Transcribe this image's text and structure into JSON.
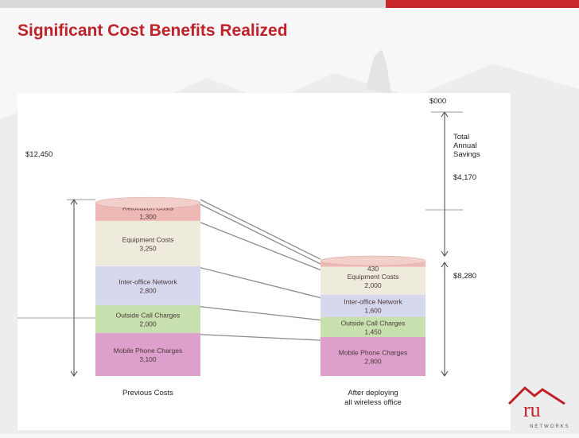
{
  "slide": {
    "title": "Significant Cost Benefits Realized",
    "accent_color": "#c0222a"
  },
  "logo": {
    "text_large": "ru",
    "text_small": "NETWORKS"
  },
  "chart_data": {
    "type": "bar",
    "stacked": true,
    "categories": [
      "Previous Costs",
      "After deploying all wireless office"
    ],
    "series": [
      {
        "name": "Mobile Phone Charges",
        "values": [
          3100,
          2800
        ],
        "labels": [
          "3,100",
          "2,800"
        ],
        "color": "#dda0cc"
      },
      {
        "name": "Outside Call Charges",
        "values": [
          2000,
          1450
        ],
        "labels": [
          "2,000",
          "1,450"
        ],
        "color": "#c7e0ad"
      },
      {
        "name": "Inter-office Network",
        "values": [
          2800,
          1600
        ],
        "labels": [
          "2,800",
          "1,600"
        ],
        "color": "#d6d8ee"
      },
      {
        "name": "Equipment Costs",
        "values": [
          3250,
          2000
        ],
        "labels": [
          "3,250",
          "2,000"
        ],
        "color": "#efebdc"
      },
      {
        "name": "Relocation Costs",
        "values": [
          1300,
          430
        ],
        "labels": [
          "1,300",
          "430"
        ],
        "color": "#eeb8b4"
      }
    ],
    "annotations": {
      "previous_total": "$12,450",
      "top_marker": "$000",
      "savings_label": [
        "Total",
        "Annual",
        "Savings"
      ],
      "savings_value": "$4,170",
      "after_total": "$8,280"
    },
    "grid": false,
    "legend": "none"
  }
}
